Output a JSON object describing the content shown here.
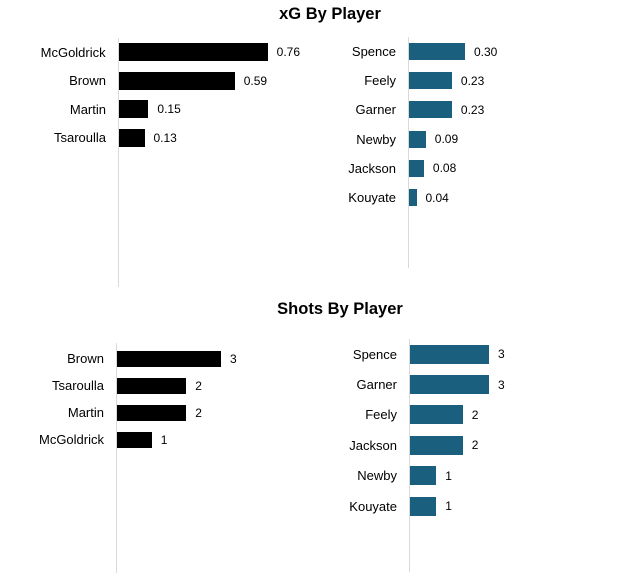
{
  "page": {
    "background": "#FFFFFF"
  },
  "colors": {
    "left_series_bar": "#000000",
    "right_series_bar": "#1B5F7F",
    "axis_line": "#D9D9D9",
    "text": "#000000"
  },
  "sections": [
    {
      "title": "xG By Player"
    },
    {
      "title": "Shots By Player"
    }
  ],
  "chart_data": [
    {
      "type": "bar",
      "orientation": "horizontal",
      "title": "xG By Player",
      "panel": "left",
      "categories": [
        "McGoldrick",
        "Brown",
        "Martin",
        "Tsaroulla"
      ],
      "values": [
        0.76,
        0.59,
        0.15,
        0.13
      ],
      "value_labels": [
        "0.76",
        "0.59",
        "0.15",
        "0.13"
      ],
      "bar_color": "#000000",
      "xlabel": "",
      "ylabel": "",
      "xlim": [
        0,
        0.76
      ],
      "grid": false,
      "legend": false
    },
    {
      "type": "bar",
      "orientation": "horizontal",
      "title": "xG By Player",
      "panel": "right",
      "categories": [
        "Spence",
        "Feely",
        "Garner",
        "Newby",
        "Jackson",
        "Kouyate"
      ],
      "values": [
        0.3,
        0.23,
        0.23,
        0.09,
        0.08,
        0.04
      ],
      "value_labels": [
        "0.30",
        "0.23",
        "0.23",
        "0.09",
        "0.08",
        "0.04"
      ],
      "bar_color": "#1B5F7F",
      "xlabel": "",
      "ylabel": "",
      "xlim": [
        0,
        0.3
      ],
      "grid": false,
      "legend": false
    },
    {
      "type": "bar",
      "orientation": "horizontal",
      "title": "Shots By Player",
      "panel": "left",
      "categories": [
        "Brown",
        "Tsaroulla",
        "Martin",
        "McGoldrick"
      ],
      "values": [
        3,
        2,
        2,
        1
      ],
      "value_labels": [
        "3",
        "2",
        "2",
        "1"
      ],
      "bar_color": "#000000",
      "xlabel": "",
      "ylabel": "",
      "xlim": [
        0,
        3
      ],
      "grid": false,
      "legend": false
    },
    {
      "type": "bar",
      "orientation": "horizontal",
      "title": "Shots By Player",
      "panel": "right",
      "categories": [
        "Spence",
        "Garner",
        "Feely",
        "Jackson",
        "Newby",
        "Kouyate"
      ],
      "values": [
        3,
        3,
        2,
        2,
        1,
        1
      ],
      "value_labels": [
        "3",
        "3",
        "2",
        "2",
        "1",
        "1"
      ],
      "bar_color": "#1B5F7F",
      "xlabel": "",
      "ylabel": "",
      "xlim": [
        0,
        3
      ],
      "grid": false,
      "legend": false
    }
  ]
}
